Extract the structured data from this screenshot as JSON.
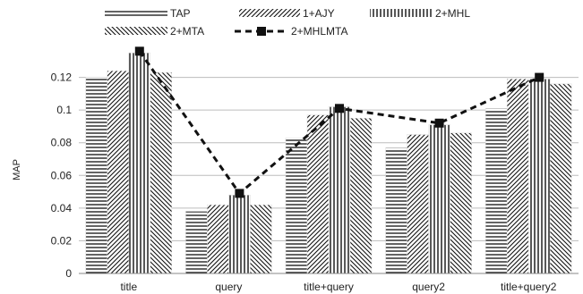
{
  "chart_data": {
    "type": "bar",
    "categories": [
      "title",
      "query",
      "title+query",
      "query2",
      "title+query2"
    ],
    "series": [
      {
        "name": "TAP",
        "pattern": "horizontal",
        "values": [
          0.12,
          0.038,
          0.083,
          0.077,
          0.101
        ]
      },
      {
        "name": "1+AJY",
        "pattern": "diagonal-right",
        "values": [
          0.124,
          0.042,
          0.097,
          0.085,
          0.119
        ]
      },
      {
        "name": "2+MHL",
        "pattern": "vertical",
        "values": [
          0.135,
          0.048,
          0.102,
          0.091,
          0.119
        ]
      },
      {
        "name": "2+MTA",
        "pattern": "diagonal-left",
        "values": [
          0.123,
          0.042,
          0.095,
          0.086,
          0.116
        ]
      }
    ],
    "line_series": {
      "name": "2+MHLMTA",
      "style": "dashed-square-markers",
      "values": [
        0.136,
        0.049,
        0.101,
        0.092,
        0.12
      ]
    },
    "title": "",
    "xlabel": "",
    "ylabel": "MAP",
    "ylim": [
      0,
      0.14
    ],
    "yticks": [
      "0",
      "0.02",
      "0.04",
      "0.06",
      "0.08",
      "0.1",
      "0.12"
    ],
    "grid": "horizontal",
    "legend_position": "top"
  }
}
